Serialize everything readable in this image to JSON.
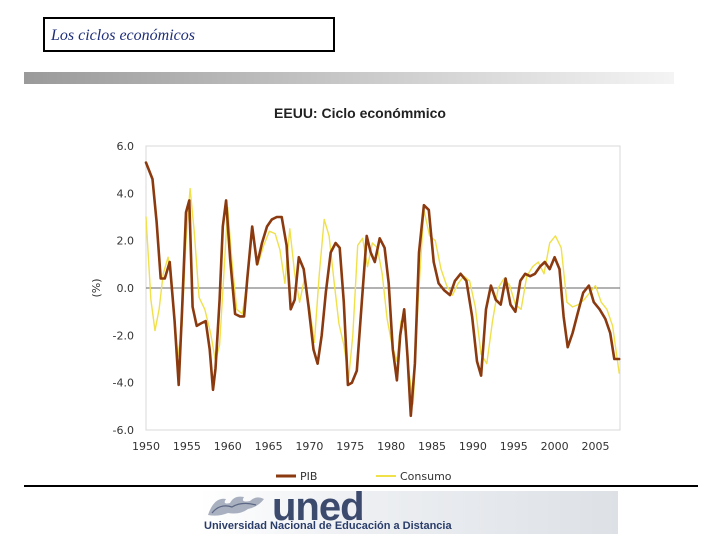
{
  "slide": {
    "title": "Los ciclos económicos"
  },
  "footer": {
    "logo_word": "uned",
    "logo_subtitle": "Universidad Nacional de Educación a Distancia"
  },
  "colors": {
    "pib": "#8b3a0f",
    "consumo": "#f0e04a",
    "title_text": "#1f2f7a"
  },
  "chart_data": {
    "type": "line",
    "title": "EEUU: Ciclo económmico",
    "ylabel": "(%)",
    "xlabel": "",
    "ylim": [
      -6.0,
      6.0
    ],
    "y_ticks": [
      "6.0",
      "4.0",
      "2.0",
      "0.0",
      "-2.0",
      "-4.0",
      "-6.0"
    ],
    "y_tick_values": [
      6,
      4,
      2,
      0,
      -2,
      -4,
      -6
    ],
    "xlim": [
      1950,
      2008
    ],
    "x_ticks": [
      "1950",
      "1955",
      "1960",
      "1965",
      "1970",
      "1975",
      "1980",
      "1985",
      "1990",
      "1995",
      "2000",
      "2005"
    ],
    "x_tick_values": [
      1950,
      1955,
      1960,
      1965,
      1970,
      1975,
      1980,
      1985,
      1990,
      1995,
      2000,
      2005
    ],
    "legend_position": "bottom",
    "zero_line": true,
    "series": [
      {
        "name": "PIB",
        "x": [
          1950,
          1950.8,
          1951.3,
          1951.8,
          1952.3,
          1952.9,
          1953.5,
          1954.0,
          1954.4,
          1954.9,
          1955.3,
          1955.7,
          1956.2,
          1956.7,
          1957.3,
          1957.8,
          1958.2,
          1958.5,
          1959.0,
          1959.4,
          1959.8,
          1960.3,
          1960.9,
          1961.5,
          1962.0,
          1962.4,
          1963.0,
          1963.6,
          1964.2,
          1964.8,
          1965.4,
          1966.0,
          1966.6,
          1967.2,
          1967.7,
          1968.2,
          1968.7,
          1969.3,
          1969.9,
          1970.5,
          1971.0,
          1971.5,
          1972.0,
          1972.6,
          1973.2,
          1973.7,
          1974.2,
          1974.7,
          1975.2,
          1975.8,
          1976.4,
          1977.0,
          1977.5,
          1978.0,
          1978.6,
          1979.2,
          1979.7,
          1980.2,
          1980.7,
          1981.1,
          1981.6,
          1982.0,
          1982.4,
          1982.9,
          1983.4,
          1984.0,
          1984.6,
          1985.2,
          1985.8,
          1986.5,
          1987.2,
          1987.8,
          1988.5,
          1989.2,
          1989.9,
          1990.5,
          1991.0,
          1991.6,
          1992.2,
          1992.8,
          1993.4,
          1994.0,
          1994.6,
          1995.2,
          1995.8,
          1996.4,
          1997.0,
          1997.6,
          1998.2,
          1998.8,
          1999.4,
          2000.0,
          2000.6,
          2001.1,
          2001.6,
          2002.2,
          2002.8,
          2003.5,
          2004.2,
          2004.8,
          2005.5,
          2006.2,
          2006.8,
          2007.3,
          2007.9
        ],
        "y": [
          5.3,
          4.6,
          2.8,
          0.4,
          0.4,
          1.1,
          -1.4,
          -4.1,
          -1.0,
          3.2,
          3.7,
          -0.8,
          -1.6,
          -1.5,
          -1.4,
          -2.6,
          -4.3,
          -3.4,
          -0.5,
          2.6,
          3.7,
          1.2,
          -1.1,
          -1.2,
          -1.2,
          0.4,
          2.6,
          1.0,
          1.9,
          2.6,
          2.9,
          3.0,
          3.0,
          1.8,
          -0.9,
          -0.5,
          1.3,
          0.8,
          -0.8,
          -2.6,
          -3.2,
          -2.0,
          -0.2,
          1.5,
          1.9,
          1.7,
          -0.6,
          -4.1,
          -4.0,
          -3.5,
          -0.6,
          2.2,
          1.5,
          1.1,
          2.1,
          1.7,
          0.2,
          -2.6,
          -3.9,
          -2.0,
          -0.9,
          -2.9,
          -5.4,
          -3.2,
          1.5,
          3.5,
          3.3,
          1.1,
          0.2,
          -0.1,
          -0.3,
          0.3,
          0.6,
          0.3,
          -1.2,
          -3.1,
          -3.7,
          -0.9,
          0.1,
          -0.5,
          -0.7,
          0.4,
          -0.7,
          -1.0,
          0.3,
          0.6,
          0.5,
          0.6,
          0.9,
          1.1,
          0.8,
          1.3,
          0.8,
          -1.2,
          -2.5,
          -1.9,
          -1.1,
          -0.2,
          0.1,
          -0.6,
          -0.9,
          -1.3,
          -1.9,
          -3.0,
          -3.0
        ]
      },
      {
        "name": "Consumo",
        "x": [
          1950,
          1950.6,
          1951.1,
          1951.6,
          1952.1,
          1952.7,
          1953.3,
          1953.9,
          1954.4,
          1954.9,
          1955.4,
          1955.9,
          1956.5,
          1957.2,
          1957.9,
          1958.5,
          1959.0,
          1959.5,
          1960.0,
          1960.5,
          1961.1,
          1961.8,
          1962.4,
          1963.0,
          1963.7,
          1964.4,
          1965.1,
          1965.8,
          1966.4,
          1967.0,
          1967.6,
          1968.2,
          1968.8,
          1969.4,
          1970.0,
          1970.6,
          1971.2,
          1971.8,
          1972.4,
          1973.0,
          1973.6,
          1974.2,
          1974.8,
          1975.3,
          1975.9,
          1976.5,
          1977.1,
          1977.7,
          1978.3,
          1978.9,
          1979.5,
          1980.1,
          1980.7,
          1981.2,
          1981.7,
          1982.2,
          1982.7,
          1983.3,
          1984.0,
          1984.7,
          1985.4,
          1986.1,
          1986.8,
          1987.5,
          1988.2,
          1988.9,
          1989.6,
          1990.3,
          1991.0,
          1991.7,
          1992.4,
          1993.1,
          1993.8,
          1994.5,
          1995.2,
          1995.9,
          1996.6,
          1997.3,
          1998.0,
          1998.7,
          1999.4,
          2000.1,
          2000.8,
          2001.5,
          2002.2,
          2002.9,
          2003.6,
          2004.3,
          2005.0,
          2005.7,
          2006.4,
          2007.1,
          2007.9
        ],
        "y": [
          3.0,
          -0.5,
          -1.8,
          -0.9,
          0.6,
          1.3,
          -0.5,
          -2.9,
          -1.6,
          2.0,
          4.2,
          2.4,
          -0.4,
          -0.9,
          -1.9,
          -3.1,
          -2.4,
          0.4,
          3.4,
          1.2,
          -0.9,
          -1.1,
          0.3,
          2.4,
          1.0,
          1.8,
          2.4,
          2.3,
          1.6,
          0.2,
          2.5,
          0.6,
          -0.6,
          0.4,
          -0.8,
          -2.3,
          0.6,
          2.9,
          2.2,
          0.3,
          -1.5,
          -2.4,
          -3.8,
          -2.0,
          1.8,
          2.1,
          0.9,
          1.9,
          1.7,
          0.6,
          -1.3,
          -2.4,
          -3.1,
          -1.4,
          -1.8,
          -3.6,
          -4.9,
          -0.6,
          3.3,
          2.2,
          2.0,
          0.8,
          0.1,
          -0.3,
          0.2,
          0.5,
          0.3,
          -0.8,
          -2.8,
          -3.2,
          -1.4,
          0.0,
          0.4,
          0.1,
          -0.7,
          -0.9,
          0.5,
          0.9,
          1.1,
          0.6,
          1.9,
          2.2,
          1.7,
          -0.6,
          -0.8,
          -0.7,
          -0.5,
          -0.2,
          0.1,
          -0.6,
          -0.9,
          -1.6,
          -3.6
        ]
      }
    ]
  }
}
